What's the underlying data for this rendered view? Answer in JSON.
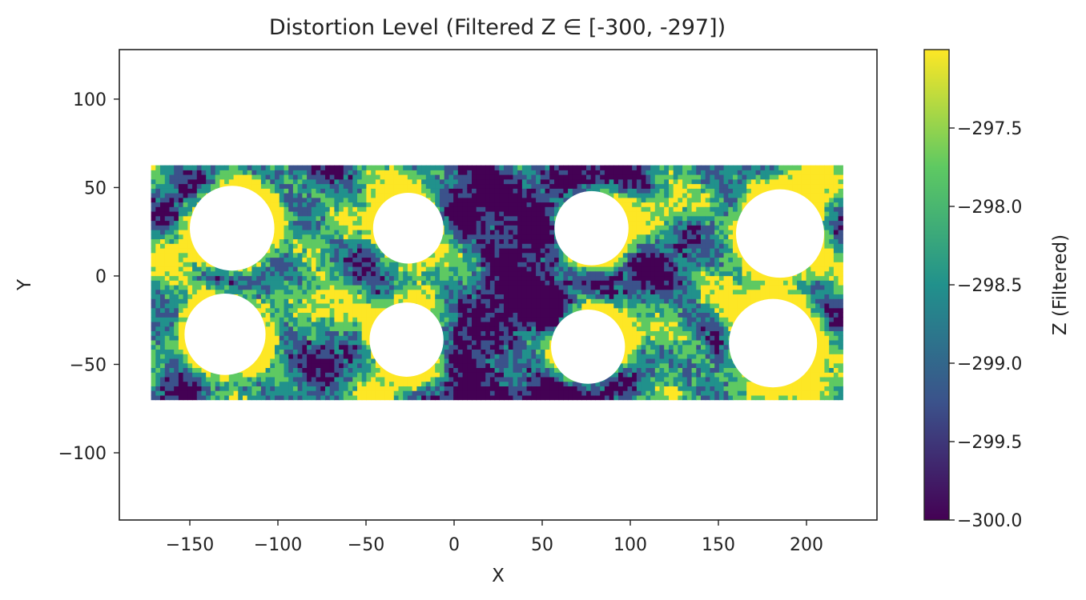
{
  "chart_data": {
    "type": "heatmap",
    "title": "Distortion Level (Filtered Z ∈ [-300, -297])",
    "xlabel": "X",
    "ylabel": "Y",
    "xlim": [
      -190,
      240
    ],
    "ylim": [
      -138,
      128
    ],
    "xticks": [
      -150,
      -100,
      -50,
      0,
      50,
      100,
      150,
      200
    ],
    "xtick_labels": [
      "−150",
      "−100",
      "−50",
      "0",
      "50",
      "100",
      "150",
      "200"
    ],
    "yticks": [
      100,
      50,
      0,
      -50,
      -100
    ],
    "ytick_labels": [
      "100",
      "50",
      "0",
      "−50",
      "−100"
    ],
    "colormap": "viridis",
    "colorbar": {
      "label": "Z (Filtered)",
      "range": [
        -300,
        -297
      ],
      "ticks": [
        -297.5,
        -298.0,
        -298.5,
        -299.0,
        -299.5,
        -300.0
      ],
      "tick_labels": [
        "−297.5",
        "−298.0",
        "−298.5",
        "−299.0",
        "−299.5",
        "−300.0"
      ]
    },
    "data_extent": {
      "x": [
        -172,
        220
      ],
      "y": [
        -70,
        61
      ]
    },
    "holes": [
      {
        "cx": -126,
        "cy": 27,
        "r": 24
      },
      {
        "cx": -26,
        "cy": 27,
        "r": 20
      },
      {
        "cx": 78,
        "cy": 27,
        "r": 21
      },
      {
        "cx": 185,
        "cy": 24,
        "r": 25
      },
      {
        "cx": -130,
        "cy": -33,
        "r": 23
      },
      {
        "cx": -27,
        "cy": -36,
        "r": 21
      },
      {
        "cx": 76,
        "cy": -40,
        "r": 21
      },
      {
        "cx": 181,
        "cy": -38,
        "r": 25
      }
    ],
    "grid": false
  }
}
